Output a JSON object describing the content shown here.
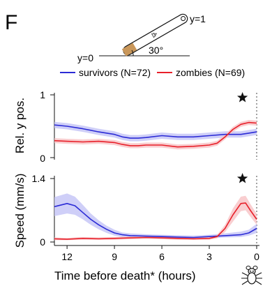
{
  "figure": {
    "panel_letter": "F",
    "x_axis_label": "Time before death* (hours)",
    "tube": {
      "angle_label": "30°",
      "bottom_label": "y=0",
      "top_label": "y=1"
    },
    "colors": {
      "survivors": "#2b2bd6",
      "zombies": "#e8202a",
      "survivors_band": "#c3c3f6",
      "zombies_band": "#f7c2c4"
    }
  },
  "chart_data": [
    {
      "type": "line",
      "ylabel": "Rel. y pos.",
      "ylim": [
        0,
        1
      ],
      "y_ticks": [
        "0",
        "1"
      ],
      "x_reversed": true,
      "xlim": [
        12.8,
        0
      ],
      "marker_star_at_x": 0.9,
      "series": [
        {
          "name": "survivors (N=72)",
          "color": "#2b2bd6",
          "x": [
            12.8,
            12,
            11,
            10,
            9,
            8.5,
            8,
            7.5,
            7,
            6,
            5,
            4,
            3,
            2,
            1,
            0.5,
            0
          ],
          "y": [
            0.52,
            0.5,
            0.46,
            0.41,
            0.37,
            0.33,
            0.31,
            0.31,
            0.32,
            0.35,
            0.33,
            0.33,
            0.35,
            0.37,
            0.37,
            0.39,
            0.41
          ],
          "band": 0.05
        },
        {
          "name": "zombies (N=69)",
          "color": "#e8202a",
          "x": [
            12.8,
            12,
            11,
            10,
            9,
            8.5,
            8,
            7.5,
            7,
            6,
            5,
            4,
            3,
            2.5,
            2,
            1.5,
            1,
            0.5,
            0
          ],
          "y": [
            0.27,
            0.26,
            0.25,
            0.26,
            0.24,
            0.21,
            0.19,
            0.19,
            0.2,
            0.2,
            0.17,
            0.18,
            0.2,
            0.23,
            0.33,
            0.45,
            0.53,
            0.56,
            0.55
          ],
          "band": 0.04
        }
      ]
    },
    {
      "type": "line",
      "ylabel": "Speed (mm/s)",
      "ylim": [
        0,
        1.4
      ],
      "y_ticks": [
        "0",
        "1.4"
      ],
      "x_reversed": true,
      "xlim": [
        12.8,
        0
      ],
      "x_ticks": [
        12,
        9,
        6,
        3,
        0
      ],
      "x_tick_labels": [
        "12",
        "9",
        "6",
        "3",
        "0"
      ],
      "marker_star_at_x": 0.9,
      "series": [
        {
          "name": "survivors (N=72)",
          "color": "#2b2bd6",
          "x": [
            12.8,
            12,
            11.5,
            11,
            10.5,
            10,
            9.5,
            9,
            8.5,
            8,
            7,
            6,
            5,
            4,
            3,
            2,
            1,
            0.5,
            0
          ],
          "y": [
            0.78,
            0.85,
            0.8,
            0.65,
            0.5,
            0.38,
            0.28,
            0.2,
            0.16,
            0.14,
            0.13,
            0.12,
            0.11,
            0.1,
            0.12,
            0.14,
            0.16,
            0.2,
            0.3
          ],
          "band_lower": [
            0.57,
            0.63,
            0.6,
            0.5,
            0.38,
            0.28,
            0.2,
            0.14,
            0.11,
            0.1,
            0.09,
            0.08,
            0.07,
            0.06,
            0.08,
            0.1,
            0.11,
            0.14,
            0.2
          ],
          "band_upper": [
            0.99,
            1.07,
            1.0,
            0.82,
            0.63,
            0.48,
            0.36,
            0.27,
            0.21,
            0.19,
            0.17,
            0.16,
            0.15,
            0.14,
            0.16,
            0.19,
            0.23,
            0.27,
            0.4
          ]
        },
        {
          "name": "zombies (N=69)",
          "color": "#e8202a",
          "x": [
            12.8,
            12,
            11,
            10,
            9,
            8,
            7,
            6,
            5,
            4,
            3,
            2.5,
            2,
            1.5,
            1,
            0.7,
            0.4,
            0
          ],
          "y": [
            0.07,
            0.06,
            0.08,
            0.07,
            0.08,
            0.09,
            0.1,
            0.09,
            0.08,
            0.07,
            0.08,
            0.12,
            0.3,
            0.6,
            0.85,
            0.86,
            0.7,
            0.5
          ],
          "band_lower": [
            0.04,
            0.04,
            0.05,
            0.05,
            0.05,
            0.06,
            0.07,
            0.06,
            0.05,
            0.05,
            0.05,
            0.08,
            0.22,
            0.45,
            0.68,
            0.7,
            0.56,
            0.38
          ],
          "band_upper": [
            0.1,
            0.09,
            0.11,
            0.1,
            0.11,
            0.12,
            0.13,
            0.12,
            0.11,
            0.1,
            0.11,
            0.16,
            0.38,
            0.74,
            1.0,
            1.02,
            0.84,
            0.62
          ]
        }
      ]
    }
  ]
}
